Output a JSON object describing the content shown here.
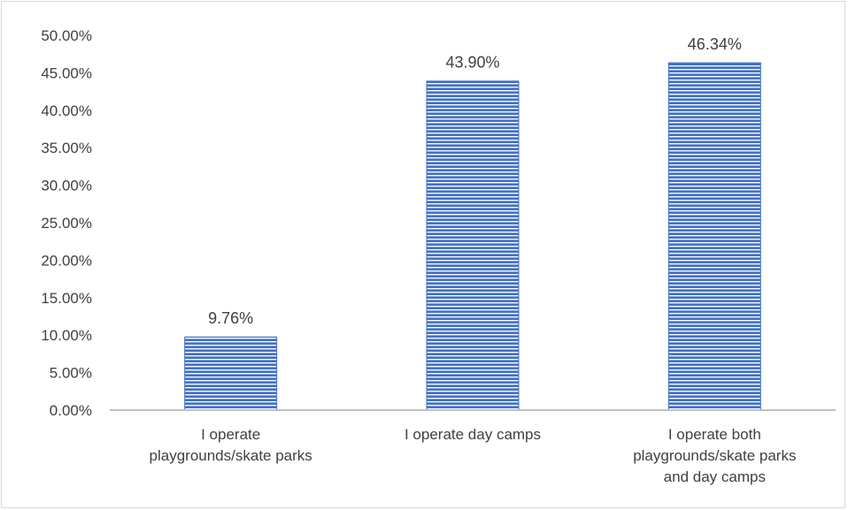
{
  "chart_data": {
    "type": "bar",
    "title": "",
    "xlabel": "",
    "ylabel": "",
    "categories": [
      [
        "I operate",
        "playgrounds/skate parks"
      ],
      [
        "I operate day camps"
      ],
      [
        "I operate both",
        "playgrounds/skate parks",
        "and day camps"
      ]
    ],
    "values": [
      9.76,
      43.9,
      46.34
    ],
    "value_labels": [
      "9.76%",
      "43.90%",
      "46.34%"
    ],
    "ylim": [
      0,
      50
    ],
    "yticks": [
      "0.00%",
      "5.00%",
      "10.00%",
      "15.00%",
      "20.00%",
      "25.00%",
      "30.00%",
      "35.00%",
      "40.00%",
      "45.00%",
      "50.00%"
    ],
    "grid": false,
    "legend": "none",
    "colors": {
      "bar_fill": "#4472c4",
      "bar_stripe": "#ffffff",
      "axis": "#bfbfbf",
      "text": "#404040"
    }
  }
}
